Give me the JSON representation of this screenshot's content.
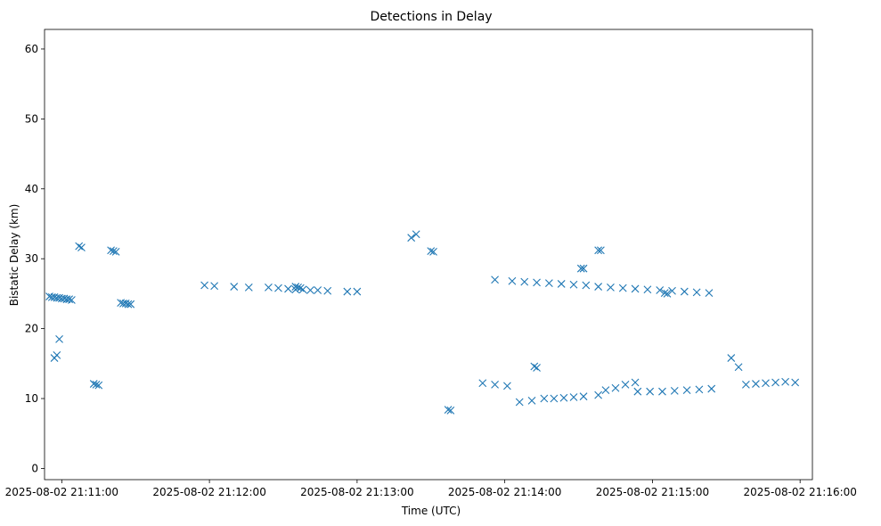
{
  "chart_data": {
    "type": "scatter",
    "title": "Detections in Delay",
    "xlabel": "Time (UTC)",
    "ylabel": "Bistatic Delay (km)",
    "x_ticks": [
      "2025-08-02 21:11:00",
      "2025-08-02 21:12:00",
      "2025-08-02 21:13:00",
      "2025-08-02 21:14:00",
      "2025-08-02 21:15:00",
      "2025-08-02 21:16:00"
    ],
    "y_ticks": [
      "0",
      "10",
      "20",
      "30",
      "40",
      "50",
      "60"
    ],
    "x_range": [
      "2025-08-02 21:10:53",
      "2025-08-02 21:16:05"
    ],
    "ylim": [
      -1.6,
      62.8
    ],
    "marker": "x",
    "color": "#1f77b4",
    "grid": false,
    "series": [
      {
        "points": [
          [
            "21:10:55",
            24.6
          ],
          [
            "21:10:56",
            24.5
          ],
          [
            "21:10:57",
            24.5
          ],
          [
            "21:10:58",
            24.4
          ],
          [
            "21:10:59",
            24.4
          ],
          [
            "21:11:00",
            24.3
          ],
          [
            "21:11:01",
            24.3
          ],
          [
            "21:11:02",
            24.2
          ],
          [
            "21:11:03",
            24.2
          ],
          [
            "21:11:04",
            24.1
          ],
          [
            "21:11:24",
            23.7
          ],
          [
            "21:11:25",
            23.6
          ],
          [
            "21:11:26",
            23.6
          ],
          [
            "21:11:27",
            23.5
          ],
          [
            "21:11:28",
            23.5
          ],
          [
            "21:11:20",
            31.2
          ],
          [
            "21:11:21",
            31.1
          ],
          [
            "21:11:22",
            31.0
          ],
          [
            "21:11:58",
            26.2
          ],
          [
            "21:12:02",
            26.1
          ],
          [
            "21:12:10",
            26.0
          ],
          [
            "21:12:16",
            25.9
          ],
          [
            "21:12:24",
            25.9
          ],
          [
            "21:12:28",
            25.8
          ],
          [
            "21:12:32",
            25.7
          ],
          [
            "21:12:35",
            25.6
          ],
          [
            "21:12:38",
            25.6
          ],
          [
            "21:12:41",
            25.5
          ],
          [
            "21:12:44",
            25.5
          ],
          [
            "21:12:48",
            25.4
          ],
          [
            "21:12:56",
            25.3
          ],
          [
            "21:13:00",
            25.3
          ],
          [
            "21:13:56",
            27.0
          ],
          [
            "21:14:03",
            26.8
          ],
          [
            "21:14:08",
            26.7
          ],
          [
            "21:14:13",
            26.6
          ],
          [
            "21:14:18",
            26.5
          ],
          [
            "21:14:23",
            26.4
          ],
          [
            "21:14:28",
            26.3
          ],
          [
            "21:14:33",
            26.2
          ],
          [
            "21:14:38",
            26.0
          ],
          [
            "21:14:43",
            25.9
          ],
          [
            "21:14:48",
            25.8
          ],
          [
            "21:14:53",
            25.7
          ],
          [
            "21:14:58",
            25.6
          ],
          [
            "21:15:03",
            25.5
          ],
          [
            "21:15:08",
            25.4
          ],
          [
            "21:15:13",
            25.3
          ],
          [
            "21:15:18",
            25.2
          ],
          [
            "21:15:23",
            25.1
          ],
          [
            "21:14:31",
            28.6
          ],
          [
            "21:14:32",
            28.6
          ],
          [
            "21:14:38",
            31.2
          ],
          [
            "21:14:39",
            31.2
          ],
          [
            "21:13:30",
            31.1
          ],
          [
            "21:13:31",
            31.0
          ],
          [
            "21:15:05",
            25.1
          ],
          [
            "21:15:06",
            25.0
          ],
          [
            "21:13:51",
            12.2
          ],
          [
            "21:13:56",
            12.0
          ],
          [
            "21:14:01",
            11.8
          ],
          [
            "21:14:16",
            10.0
          ],
          [
            "21:14:20",
            10.0
          ],
          [
            "21:14:24",
            10.1
          ],
          [
            "21:14:28",
            10.2
          ],
          [
            "21:14:32",
            10.3
          ],
          [
            "21:14:38",
            10.5
          ],
          [
            "21:14:41",
            11.2
          ],
          [
            "21:14:45",
            11.5
          ],
          [
            "21:14:49",
            12.0
          ],
          [
            "21:14:53",
            12.3
          ],
          [
            "21:14:06",
            9.5
          ],
          [
            "21:14:11",
            9.7
          ],
          [
            "21:14:54",
            11.0
          ],
          [
            "21:14:59",
            11.0
          ],
          [
            "21:15:04",
            11.0
          ],
          [
            "21:15:09",
            11.1
          ],
          [
            "21:15:14",
            11.2
          ],
          [
            "21:15:19",
            11.3
          ],
          [
            "21:15:24",
            11.4
          ],
          [
            "21:15:32",
            15.8
          ],
          [
            "21:15:35",
            14.5
          ],
          [
            "21:15:38",
            12.0
          ],
          [
            "21:15:42",
            12.1
          ],
          [
            "21:15:46",
            12.2
          ],
          [
            "21:15:50",
            12.3
          ],
          [
            "21:15:54",
            12.4
          ],
          [
            "21:15:58",
            12.3
          ],
          [
            "21:11:13",
            12.1
          ],
          [
            "21:11:14",
            12.0
          ],
          [
            "21:11:15",
            11.9
          ],
          [
            "21:12:35",
            26.0
          ],
          [
            "21:12:36",
            25.9
          ],
          [
            "21:12:37",
            25.8
          ],
          [
            "21:13:22",
            33.0
          ],
          [
            "21:13:24",
            33.5
          ],
          [
            "21:13:37",
            8.4
          ],
          [
            "21:13:38",
            8.3
          ],
          [
            "21:14:12",
            14.6
          ],
          [
            "21:14:13",
            14.4
          ],
          [
            "21:11:07",
            31.8
          ],
          [
            "21:11:08",
            31.6
          ],
          [
            "21:10:57",
            15.8
          ],
          [
            "21:10:58",
            16.2
          ],
          [
            "21:10:59",
            18.5
          ]
        ]
      }
    ]
  }
}
